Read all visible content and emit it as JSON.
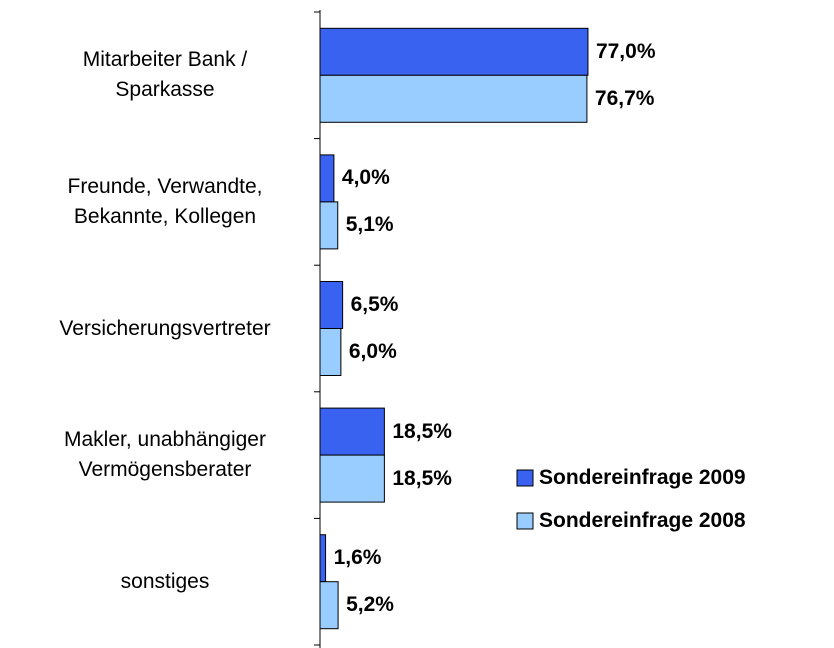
{
  "chart_data": {
    "type": "hbar",
    "categories": [
      "Mitarbeiter Bank /\nSparkasse",
      "Freunde, Verwandte,\nBekannte, Kollegen",
      "Versicherungsvertreter",
      "Makler, unabhängiger\nVermögensberater",
      "sonstiges"
    ],
    "series": [
      {
        "name": "Sondereinfrage 2009",
        "color": "#3a62f0",
        "values": [
          77.0,
          4.0,
          6.5,
          18.5,
          1.6
        ],
        "value_labels": [
          "77,0%",
          "4,0%",
          "6,5%",
          "18,5%",
          "1,6%"
        ]
      },
      {
        "name": "Sondereinfrage 2008",
        "color": "#99ccff",
        "values": [
          76.7,
          5.1,
          6.0,
          18.5,
          5.2
        ],
        "value_labels": [
          "76,7%",
          "5,1%",
          "6,0%",
          "18,5%",
          "5,2%"
        ]
      }
    ],
    "xlim": [
      0,
      100
    ],
    "legend": "lower right"
  }
}
